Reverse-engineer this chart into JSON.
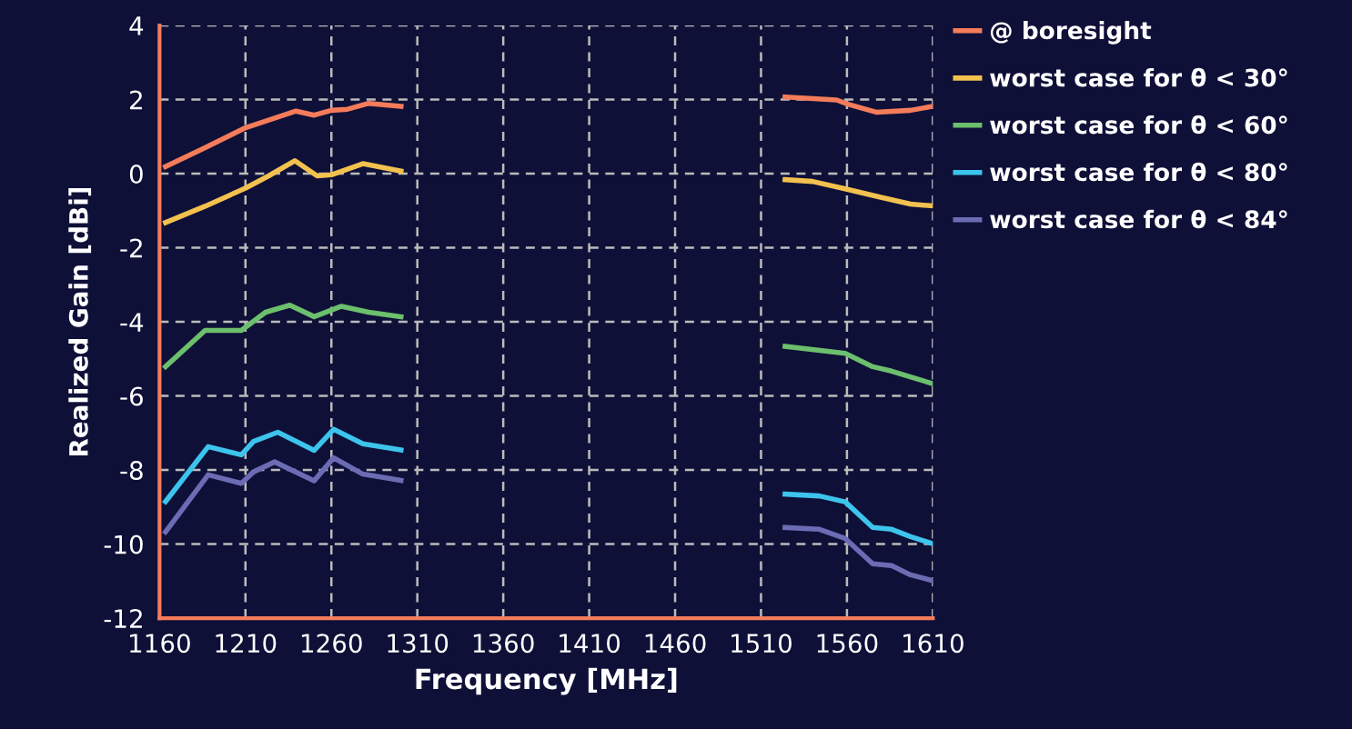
{
  "chart_data": {
    "type": "line",
    "xlabel": "Frequency [MHz]",
    "ylabel": "Realized Gain [dBi]",
    "xlim": [
      1160,
      1610
    ],
    "xticks": [
      1160,
      1210,
      1260,
      1310,
      1360,
      1410,
      1460,
      1510,
      1560,
      1610
    ],
    "ylim": [
      -12,
      4
    ],
    "yticks": [
      -12,
      -10,
      -8,
      -6,
      -4,
      -2,
      0,
      2,
      4
    ],
    "grid": true,
    "legend": "right",
    "line_style": "solid",
    "marker": "none",
    "series": [
      {
        "name": "@ boresight",
        "color": "#f47c5a",
        "x": [
          1163.5,
          1186.5,
          1210,
          1239.4,
          1250,
          1260,
          1269.4,
          1281.7,
          1300.5,
          1400,
          1524,
          1554,
          1561,
          1577,
          1597,
          1610
        ],
        "values": [
          0.19,
          0.7,
          1.24,
          1.69,
          1.58,
          1.71,
          1.74,
          1.9,
          1.82,
          null,
          2.07,
          1.99,
          1.87,
          1.66,
          1.71,
          1.82
        ]
      },
      {
        "name": "worst case for θ < 30°",
        "color": "#f2c14e",
        "x": [
          1163.5,
          1186.5,
          1210,
          1223.5,
          1238.7,
          1251.7,
          1260,
          1278.3,
          1300.5,
          1400,
          1524,
          1540,
          1559,
          1579,
          1597,
          1610
        ],
        "values": [
          -1.32,
          -0.88,
          -0.39,
          -0.06,
          0.35,
          -0.06,
          -0.03,
          0.27,
          0.07,
          null,
          -0.16,
          -0.21,
          -0.41,
          -0.63,
          -0.82,
          -0.87
        ]
      },
      {
        "name": "worst case for θ < 60°",
        "color": "#6cbf6c",
        "x": [
          1163.5,
          1186.5,
          1207.6,
          1221.7,
          1235.8,
          1250,
          1265.9,
          1281.7,
          1300.5,
          1400,
          1524,
          1559,
          1575,
          1586,
          1610
        ],
        "values": [
          -5.21,
          -4.23,
          -4.23,
          -3.74,
          -3.55,
          -3.86,
          -3.58,
          -3.74,
          -3.86,
          null,
          -4.66,
          -4.85,
          -5.21,
          -5.33,
          -5.67
        ]
      },
      {
        "name": "worst case for θ < 80°",
        "color": "#3cc4ec",
        "x": [
          1163.5,
          1188.3,
          1207.6,
          1214.7,
          1228.8,
          1250,
          1261.3,
          1278.3,
          1300.5,
          1400,
          1524,
          1544,
          1559,
          1575,
          1586,
          1597,
          1610
        ],
        "values": [
          -8.85,
          -7.37,
          -7.59,
          -7.23,
          -6.98,
          -7.47,
          -6.9,
          -7.29,
          -7.46,
          null,
          -8.65,
          -8.7,
          -8.86,
          -9.55,
          -9.6,
          -9.8,
          -9.99
        ]
      },
      {
        "name": "worst case for θ < 84°",
        "color": "#6c6cb4",
        "x": [
          1163.5,
          1188.3,
          1207.6,
          1214.7,
          1227,
          1250,
          1261.3,
          1278.3,
          1300.5,
          1400,
          1524,
          1544,
          1559,
          1575,
          1586,
          1597,
          1610
        ],
        "values": [
          -9.67,
          -8.13,
          -8.36,
          -8.05,
          -7.78,
          -8.29,
          -7.67,
          -8.11,
          -8.28,
          null,
          -9.55,
          -9.6,
          -9.85,
          -10.53,
          -10.58,
          -10.83,
          -10.99
        ]
      }
    ]
  }
}
